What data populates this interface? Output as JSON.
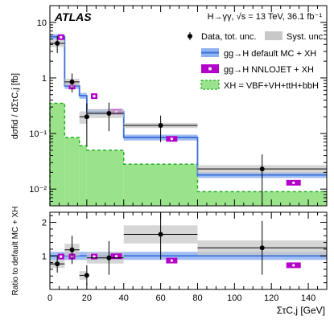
{
  "chart_data": [
    {
      "type": "step",
      "panel": "upper",
      "experiment": "ATLAS",
      "process": "H→γγ, √s = 13 TeV, 36.1 fb⁻¹",
      "ylabel": "dσfid / dΣτC,j [fb]",
      "yscale": "log",
      "ylim": [
        0.005,
        20
      ],
      "xlim": [
        0,
        150
      ],
      "y_tick_labels": [
        "10⁻²",
        "10⁻¹",
        "1",
        "10"
      ],
      "bin_edges": [
        0,
        8,
        16,
        20,
        40,
        80,
        150
      ],
      "series": [
        {
          "name": "Data, tot. unc.",
          "x": [
            4,
            12,
            20,
            32,
            60,
            115
          ],
          "y": [
            4.2,
            0.85,
            0.2,
            0.23,
            0.14,
            0.023
          ],
          "yerr_low": [
            1.4,
            0.3,
            0.14,
            0.12,
            0.07,
            0.018
          ],
          "yerr_high": [
            1.5,
            0.35,
            0.15,
            0.13,
            0.07,
            0.019
          ]
        },
        {
          "name": "Syst. unc.",
          "values": [
            0.6,
            0.12,
            0.05,
            0.04,
            0.015,
            0.004
          ]
        },
        {
          "name": "gg→H default MC + XH",
          "values": [
            5.5,
            0.72,
            0.48,
            0.245,
            0.085,
            0.018
          ]
        },
        {
          "name": "gg→H NNLOJET + XH",
          "x": [
            6,
            12,
            24,
            36,
            66,
            132
          ],
          "y": [
            5.4,
            0.7,
            0.47,
            0.245,
            0.08,
            0.013
          ]
        },
        {
          "name": "XH = VBF+VH+ttH+bbH",
          "values": [
            0.35,
            0.085,
            0.06,
            0.05,
            0.028,
            0.009
          ]
        }
      ],
      "colors": {
        "default_mc": "#3a6fd8",
        "default_band": "#8fb2f2",
        "nnlojet": "#b400c8",
        "xh_fill": "#9be38b",
        "xh_line": "#22b022",
        "syst": "#c8c8c8"
      }
    },
    {
      "type": "step",
      "panel": "lower",
      "ylabel": "Ratio to default MC + XH",
      "xlabel": "ΣτC,j [GeV]",
      "ylim": [
        0,
        2.3
      ],
      "xlim": [
        0,
        150
      ],
      "x_tick_labels": [
        "0",
        "20",
        "40",
        "60",
        "80",
        "100",
        "120",
        "140"
      ],
      "y_tick_labels": [
        "1",
        "2"
      ],
      "series": [
        {
          "name": "Data",
          "x": [
            4,
            12,
            20,
            32,
            60,
            115
          ],
          "y": [
            0.76,
            1.18,
            0.42,
            0.94,
            1.64,
            1.24
          ],
          "yerr": [
            0.26,
            0.42,
            0.3,
            0.5,
            0.75,
            0.8
          ]
        },
        {
          "name": "Syst. unc.",
          "values": [
            0.12,
            0.18,
            0.13,
            0.17,
            0.27,
            0.22
          ]
        },
        {
          "name": "NNLOJET ratio",
          "x": [
            6,
            12,
            24,
            36,
            66,
            132
          ],
          "y": [
            0.98,
            0.98,
            0.98,
            0.99,
            0.86,
            0.72
          ]
        }
      ]
    }
  ],
  "labels": {
    "atlas": "ATLAS",
    "process": "H→γγ, √s = 13 TeV, 36.1 fb⁻¹",
    "legend_data": "Data, tot. unc.",
    "legend_syst": "Syst. unc.",
    "legend_default": "gg→H default MC + XH",
    "legend_nnlojet": "gg→H NNLOJET + XH",
    "legend_xh": "XH = VBF+VH+ttH+bbH",
    "ylabel_top": "dσfid / dΣτC,j [fb]",
    "ylabel_bottom": "Ratio to default MC + XH",
    "xlabel": "ΣτC,j [GeV]"
  }
}
